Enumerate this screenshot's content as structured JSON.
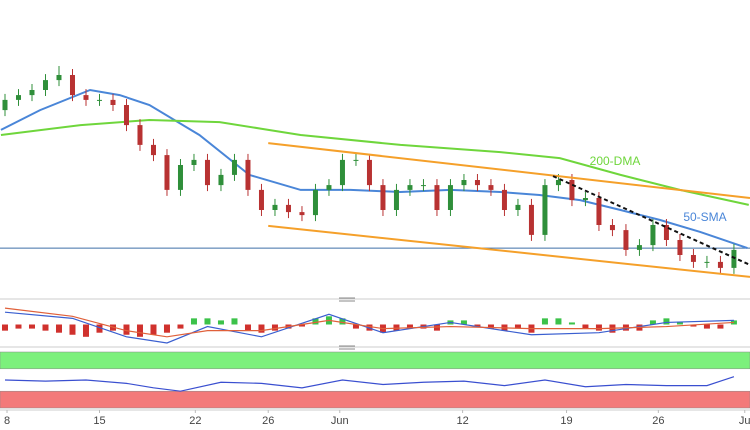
{
  "chart_data": [
    {
      "type": "candlestick",
      "x": [
        0,
        1,
        2,
        3,
        4,
        5,
        6,
        7,
        8,
        9,
        10,
        11,
        12,
        13,
        14,
        15,
        16,
        17,
        18,
        19,
        20,
        21,
        22,
        23,
        24,
        25,
        26,
        27,
        28,
        29,
        30,
        31,
        32,
        33,
        34,
        35,
        36,
        37,
        38,
        39,
        40,
        41,
        42,
        43,
        44,
        45,
        46,
        47,
        48,
        49,
        50,
        51,
        52,
        53,
        54
      ],
      "open": [
        63.3,
        66.7,
        68.3,
        70,
        73.3,
        75,
        68.3,
        66.7,
        66.7,
        65,
        58.3,
        51.7,
        48.3,
        36.7,
        45,
        46.7,
        38.3,
        41.7,
        46.7,
        36.7,
        30,
        31.7,
        29.3,
        28.3,
        36.7,
        38.3,
        46.7,
        46.7,
        38.3,
        30,
        36.7,
        38.3,
        38.3,
        30,
        38.3,
        40,
        38.3,
        36.7,
        30,
        31.7,
        21.7,
        38.3,
        40,
        33.3,
        34,
        25,
        23.3,
        16.7,
        18.3,
        25,
        20,
        15,
        12.7,
        12.7,
        10.7
      ],
      "high": [
        68.7,
        70.3,
        72,
        75.3,
        78,
        77,
        70.3,
        68.7,
        68.7,
        67,
        60.3,
        53.7,
        50.3,
        47,
        48.7,
        48.7,
        43.7,
        48.7,
        48.7,
        38.7,
        33.7,
        33.7,
        31.3,
        38.7,
        40.3,
        48.7,
        48.7,
        48.7,
        40.3,
        38.7,
        40.3,
        40.3,
        40.3,
        40.3,
        42,
        42,
        40.3,
        38.7,
        33.7,
        33.7,
        40.3,
        42,
        42,
        36,
        36,
        27,
        25.3,
        20.3,
        27,
        27,
        22,
        17,
        14.7,
        14.7,
        18.7
      ],
      "low": [
        61.3,
        64.7,
        66.3,
        68,
        71.3,
        66.3,
        64.7,
        64.7,
        63,
        56.3,
        49.7,
        46.3,
        34.7,
        34.7,
        43,
        36.3,
        36.3,
        39.7,
        34.7,
        28,
        28,
        27.3,
        26.3,
        26.3,
        34.7,
        36.3,
        44.7,
        36.3,
        28,
        28,
        34.7,
        36.3,
        28,
        28,
        36.3,
        36.3,
        34.7,
        28,
        28,
        19.7,
        19.7,
        36.3,
        31.3,
        31.3,
        23,
        21.3,
        14.7,
        14.7,
        16.3,
        18,
        13,
        10.7,
        10.7,
        8.7,
        8.7
      ],
      "close": [
        66.7,
        68.3,
        70,
        73.3,
        75,
        68.3,
        66.7,
        66.7,
        65,
        58.3,
        51.7,
        48.3,
        36.7,
        45,
        46.7,
        38.3,
        41.7,
        46.7,
        36.7,
        30,
        31.7,
        29.3,
        28.3,
        36.7,
        38.3,
        46.7,
        46.7,
        38.3,
        30,
        36.7,
        38.3,
        38.3,
        30,
        38.3,
        40,
        38.3,
        36.7,
        30,
        31.7,
        21.7,
        38.3,
        40,
        33.3,
        34,
        25,
        23.3,
        16.7,
        18.3,
        25,
        20,
        15,
        12.7,
        12.7,
        10.7,
        16.7
      ],
      "up_color": "#2f8f3a",
      "down_color": "#b83232",
      "xlim": [
        -0.37,
        55.19
      ],
      "ylim": [
        0,
        100
      ],
      "xticks": [
        {
          "value": 0.15,
          "label": "8"
        },
        {
          "value": 7,
          "label": "15"
        },
        {
          "value": 14.1,
          "label": "22"
        },
        {
          "value": 19.5,
          "label": "26"
        },
        {
          "value": 24.8,
          "label": "Jun"
        },
        {
          "value": 33.9,
          "label": "12"
        },
        {
          "value": 41.6,
          "label": "19"
        },
        {
          "value": 48.4,
          "label": "26"
        },
        {
          "value": 54.8,
          "label": "Ju"
        }
      ],
      "series": [
        {
          "name": "50-SMA",
          "color": "#4a86d8",
          "x": [
            -0.3,
            2.6,
            6.3,
            8.5,
            10.7,
            14.4,
            18.1,
            21.9,
            25.6,
            29.3,
            33,
            36.7,
            39.6,
            42.6,
            45.6,
            48.5,
            51.5,
            55
          ],
          "values": [
            56.7,
            63.3,
            70,
            68.3,
            65,
            55,
            41.7,
            36.7,
            36.7,
            36,
            36.7,
            36,
            35,
            33.3,
            30,
            26.7,
            22.7,
            17.3
          ]
        },
        {
          "name": "200-DMA",
          "color": "#6fd63c",
          "x": [
            -0.3,
            5.6,
            10.7,
            15.9,
            21.9,
            29.3,
            36.7,
            41.1,
            45.6,
            50,
            55.1
          ],
          "values": [
            55,
            58.3,
            60,
            59.3,
            55,
            51.7,
            49.3,
            47.3,
            41.7,
            36.7,
            31.7
          ]
        }
      ],
      "trendlines": [
        {
          "color": "#f5a02a",
          "dashed": false,
          "x": [
            19.5,
            55.19
          ],
          "values": [
            52.3,
            34
          ]
        },
        {
          "color": "#f5a02a",
          "dashed": false,
          "x": [
            19.5,
            55.19
          ],
          "values": [
            24.7,
            7.7
          ]
        },
        {
          "color": "#111111",
          "dashed": true,
          "x": [
            40.6,
            55.19
          ],
          "values": [
            41.3,
            11.7
          ]
        }
      ],
      "level": {
        "value": 17.3,
        "color": "#3f6fa8"
      }
    },
    {
      "type": "macd",
      "ylim": [
        -1,
        1
      ],
      "histogram": [
        -0.3,
        -0.2,
        -0.2,
        -0.3,
        -0.4,
        -0.5,
        -0.6,
        -0.4,
        -0.3,
        -0.5,
        -0.6,
        -0.5,
        -0.4,
        -0.2,
        0.3,
        0.3,
        0.2,
        0.3,
        -0.3,
        -0.4,
        -0.3,
        -0.2,
        -0.1,
        0.3,
        0.4,
        0.3,
        -0.2,
        -0.3,
        -0.4,
        -0.3,
        -0.2,
        -0.2,
        -0.3,
        0.2,
        0.2,
        -0.1,
        -0.2,
        -0.3,
        -0.2,
        -0.4,
        0.3,
        0.3,
        0.1,
        -0.2,
        -0.3,
        -0.4,
        -0.3,
        -0.3,
        0.2,
        0.3,
        0.1,
        -0.1,
        -0.2,
        -0.2,
        0.2
      ],
      "pos_color": "#3cc24a",
      "neg_color": "#d0312d",
      "line_x": [
        0,
        5,
        9,
        12,
        15,
        19,
        24,
        28,
        33,
        39,
        44,
        49,
        54
      ],
      "series": [
        {
          "color": "#3a5fd0",
          "values": [
            0.6,
            0.3,
            -0.6,
            -0.9,
            -0.1,
            -0.6,
            0.5,
            -0.4,
            0.1,
            -0.5,
            -0.4,
            0.1,
            0.2
          ]
        },
        {
          "color": "#e0603a",
          "values": [
            0.8,
            0.4,
            -0.3,
            -0.6,
            -0.3,
            -0.3,
            0.2,
            -0.2,
            -0.1,
            -0.2,
            -0.2,
            -0.1,
            0.1
          ]
        }
      ]
    },
    {
      "type": "rsi",
      "ylim": [
        0,
        100
      ],
      "bands": [
        {
          "range": [
            70,
            100
          ],
          "color": "#7cf07c"
        },
        {
          "range": [
            0,
            30
          ],
          "color": "#f37a7a"
        }
      ],
      "x": [
        0,
        3,
        6,
        9,
        11,
        13,
        16,
        19,
        22,
        25,
        28,
        31,
        34,
        37,
        40,
        43,
        46,
        49,
        52,
        54
      ],
      "values": [
        50,
        48,
        50,
        44,
        36,
        30,
        46,
        44,
        36,
        50,
        42,
        46,
        48,
        40,
        50,
        38,
        42,
        40,
        40,
        56
      ],
      "color": "#3a4fd0"
    }
  ]
}
